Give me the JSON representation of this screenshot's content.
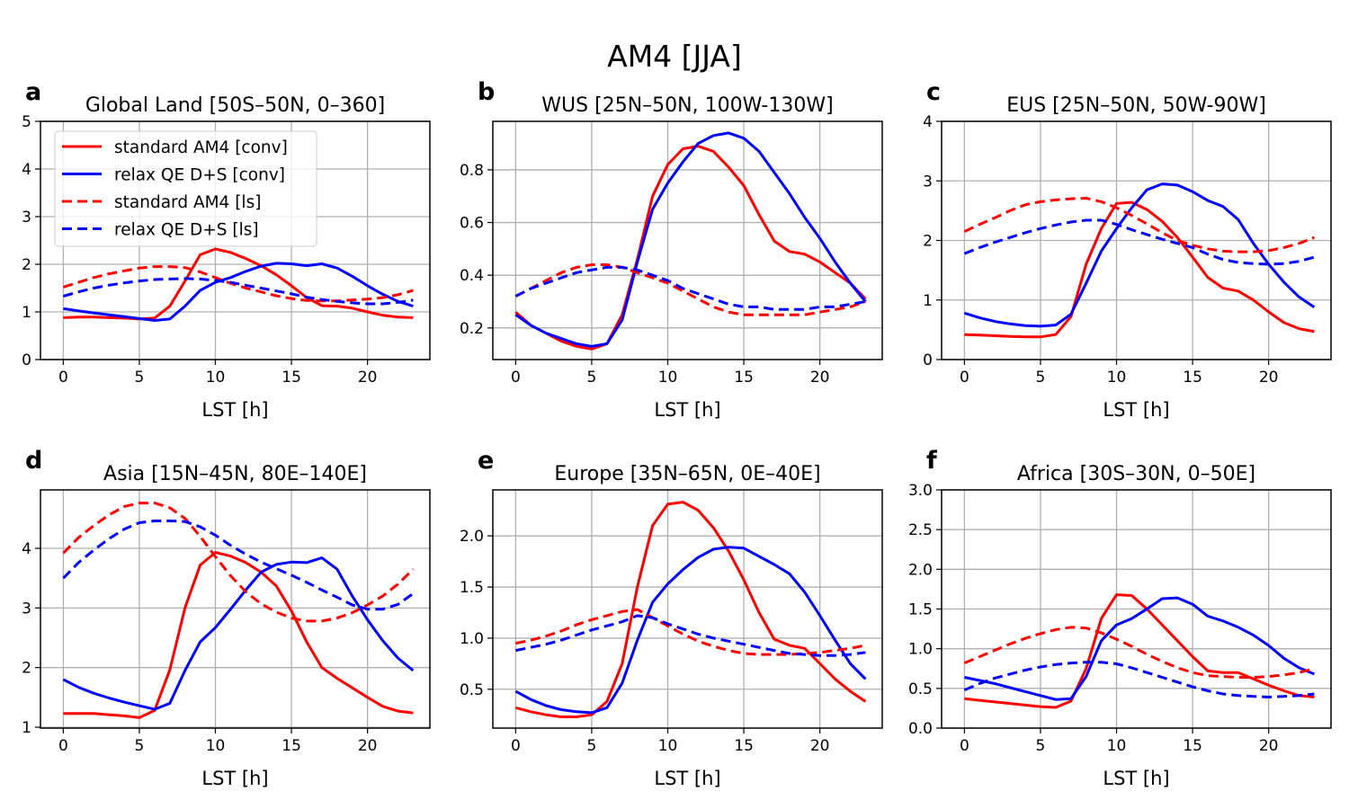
{
  "figure_title": "AM4 [JJA]",
  "colors": {
    "standard": "#ff0000",
    "relax": "#0000ff",
    "grid": "#b0b0b0"
  },
  "legend": {
    "placement": "upper-left of panel a",
    "entries": [
      {
        "label": "standard AM4 [conv]",
        "color": "#ff0000",
        "style": "solid"
      },
      {
        "label": "relax QE D+S [conv]",
        "color": "#0000ff",
        "style": "solid"
      },
      {
        "label": "standard AM4 [ls]",
        "color": "#ff0000",
        "style": "dashed"
      },
      {
        "label": "relax QE D+S [ls]",
        "color": "#0000ff",
        "style": "dashed"
      }
    ]
  },
  "chart_data": [
    {
      "type": "line",
      "letter": "a",
      "title": "Global Land [50S–50N, 0–360]",
      "xlabel": "LST [h]",
      "ylabel": "",
      "grid": true,
      "xlim": [
        -1.5,
        24.1
      ],
      "ylim": [
        0,
        5
      ],
      "xticks": [
        0,
        5,
        10,
        15,
        20
      ],
      "xticklabels": [
        "0",
        "5",
        "10",
        "15",
        "20"
      ],
      "yticks": [
        0,
        1,
        2,
        3,
        4,
        5
      ],
      "yticklabels": [
        "0",
        "1",
        "2",
        "3",
        "4",
        "5"
      ],
      "x": [
        0,
        1,
        2,
        3,
        4,
        5,
        6,
        7,
        8,
        9,
        10,
        11,
        12,
        13,
        14,
        15,
        16,
        17,
        18,
        19,
        20,
        21,
        22,
        23
      ],
      "series": [
        {
          "name": "standard AM4 [conv]",
          "values": [
            0.88,
            0.89,
            0.89,
            0.88,
            0.87,
            0.85,
            0.87,
            1.12,
            1.65,
            2.2,
            2.32,
            2.25,
            2.12,
            1.97,
            1.78,
            1.55,
            1.3,
            1.13,
            1.12,
            1.08,
            1.0,
            0.93,
            0.89,
            0.88
          ]
        },
        {
          "name": "relax QE D+S [conv]",
          "values": [
            1.07,
            1.02,
            0.98,
            0.94,
            0.9,
            0.86,
            0.82,
            0.85,
            1.12,
            1.45,
            1.62,
            1.72,
            1.85,
            1.96,
            2.02,
            2.01,
            1.97,
            2.01,
            1.92,
            1.75,
            1.55,
            1.37,
            1.22,
            1.12
          ]
        },
        {
          "name": "standard AM4 [ls]",
          "values": [
            1.52,
            1.62,
            1.72,
            1.8,
            1.86,
            1.92,
            1.95,
            1.95,
            1.93,
            1.84,
            1.72,
            1.6,
            1.5,
            1.42,
            1.34,
            1.28,
            1.24,
            1.23,
            1.23,
            1.25,
            1.27,
            1.3,
            1.36,
            1.45
          ]
        },
        {
          "name": "relax QE D+S [ls]",
          "values": [
            1.33,
            1.42,
            1.5,
            1.56,
            1.61,
            1.65,
            1.68,
            1.69,
            1.7,
            1.69,
            1.66,
            1.62,
            1.56,
            1.5,
            1.44,
            1.38,
            1.31,
            1.26,
            1.22,
            1.19,
            1.17,
            1.17,
            1.2,
            1.25
          ]
        }
      ]
    },
    {
      "type": "line",
      "letter": "b",
      "title": "WUS [25N–50N, 100W-130W]",
      "xlabel": "LST [h]",
      "ylabel": "",
      "grid": true,
      "xlim": [
        -1.5,
        24.1
      ],
      "ylim": [
        0.08,
        0.984
      ],
      "xticks": [
        0,
        5,
        10,
        15,
        20
      ],
      "xticklabels": [
        "0",
        "5",
        "10",
        "15",
        "20"
      ],
      "yticks": [
        0.2,
        0.4,
        0.6,
        0.8
      ],
      "yticklabels": [
        "0.2",
        "0.4",
        "0.6",
        "0.8"
      ],
      "x": [
        0,
        1,
        2,
        3,
        4,
        5,
        6,
        7,
        8,
        9,
        10,
        11,
        12,
        13,
        14,
        15,
        16,
        17,
        18,
        19,
        20,
        21,
        22,
        23
      ],
      "series": [
        {
          "name": "standard AM4 [conv]",
          "values": [
            0.26,
            0.21,
            0.18,
            0.15,
            0.13,
            0.12,
            0.14,
            0.25,
            0.46,
            0.7,
            0.82,
            0.88,
            0.89,
            0.87,
            0.81,
            0.74,
            0.63,
            0.53,
            0.49,
            0.48,
            0.45,
            0.41,
            0.37,
            0.31
          ]
        },
        {
          "name": "relax QE D+S [conv]",
          "values": [
            0.25,
            0.21,
            0.18,
            0.16,
            0.14,
            0.13,
            0.14,
            0.23,
            0.45,
            0.65,
            0.75,
            0.83,
            0.9,
            0.93,
            0.94,
            0.92,
            0.87,
            0.79,
            0.71,
            0.62,
            0.54,
            0.45,
            0.37,
            0.3
          ]
        },
        {
          "name": "standard AM4 [ls]",
          "values": [
            0.32,
            0.35,
            0.38,
            0.41,
            0.43,
            0.44,
            0.44,
            0.43,
            0.41,
            0.39,
            0.37,
            0.34,
            0.31,
            0.28,
            0.26,
            0.25,
            0.25,
            0.25,
            0.25,
            0.25,
            0.26,
            0.27,
            0.28,
            0.3
          ]
        },
        {
          "name": "relax QE D+S [ls]",
          "values": [
            0.32,
            0.35,
            0.37,
            0.39,
            0.41,
            0.42,
            0.43,
            0.43,
            0.42,
            0.4,
            0.38,
            0.35,
            0.33,
            0.31,
            0.29,
            0.28,
            0.28,
            0.27,
            0.27,
            0.27,
            0.28,
            0.28,
            0.29,
            0.3
          ]
        }
      ]
    },
    {
      "type": "line",
      "letter": "c",
      "title": "EUS [25N–50N, 50W-90W]",
      "xlabel": "LST [h]",
      "ylabel": "",
      "grid": true,
      "xlim": [
        -1.5,
        24.1
      ],
      "ylim": [
        0,
        4
      ],
      "xticks": [
        0,
        5,
        10,
        15,
        20
      ],
      "xticklabels": [
        "0",
        "5",
        "10",
        "15",
        "20"
      ],
      "yticks": [
        0,
        1,
        2,
        3,
        4
      ],
      "yticklabels": [
        "0",
        "1",
        "2",
        "3",
        "4"
      ],
      "x": [
        0,
        1,
        2,
        3,
        4,
        5,
        6,
        7,
        8,
        9,
        10,
        11,
        12,
        13,
        14,
        15,
        16,
        17,
        18,
        19,
        20,
        21,
        22,
        23
      ],
      "series": [
        {
          "name": "standard AM4 [conv]",
          "values": [
            0.42,
            0.41,
            0.4,
            0.39,
            0.38,
            0.38,
            0.42,
            0.72,
            1.6,
            2.2,
            2.62,
            2.64,
            2.52,
            2.32,
            2.05,
            1.72,
            1.38,
            1.2,
            1.15,
            1.0,
            0.8,
            0.62,
            0.52,
            0.47
          ]
        },
        {
          "name": "relax QE D+S [conv]",
          "values": [
            0.78,
            0.7,
            0.64,
            0.6,
            0.57,
            0.56,
            0.58,
            0.76,
            1.28,
            1.82,
            2.2,
            2.55,
            2.85,
            2.95,
            2.93,
            2.82,
            2.67,
            2.57,
            2.35,
            1.95,
            1.6,
            1.3,
            1.05,
            0.88
          ]
        },
        {
          "name": "standard AM4 [ls]",
          "values": [
            2.15,
            2.27,
            2.38,
            2.5,
            2.6,
            2.65,
            2.68,
            2.7,
            2.71,
            2.65,
            2.55,
            2.42,
            2.28,
            2.13,
            2.0,
            1.92,
            1.86,
            1.82,
            1.81,
            1.81,
            1.83,
            1.88,
            1.95,
            2.05
          ]
        },
        {
          "name": "relax QE D+S [ls]",
          "values": [
            1.78,
            1.88,
            1.97,
            2.05,
            2.13,
            2.2,
            2.26,
            2.31,
            2.34,
            2.34,
            2.27,
            2.18,
            2.1,
            2.02,
            1.95,
            1.88,
            1.77,
            1.68,
            1.63,
            1.61,
            1.6,
            1.61,
            1.65,
            1.72
          ]
        }
      ]
    },
    {
      "type": "line",
      "letter": "d",
      "title": "Asia [15N–45N, 80E–140E]",
      "xlabel": "LST [h]",
      "ylabel": "",
      "grid": true,
      "xlim": [
        -1.5,
        24.1
      ],
      "ylim": [
        0.985,
        4.98
      ],
      "xticks": [
        0,
        5,
        10,
        15,
        20
      ],
      "xticklabels": [
        "0",
        "5",
        "10",
        "15",
        "20"
      ],
      "yticks": [
        1,
        2,
        3,
        4
      ],
      "yticklabels": [
        "1",
        "2",
        "3",
        "4"
      ],
      "x": [
        0,
        1,
        2,
        3,
        4,
        5,
        6,
        7,
        8,
        9,
        10,
        11,
        12,
        13,
        14,
        15,
        16,
        17,
        18,
        19,
        20,
        21,
        22,
        23
      ],
      "series": [
        {
          "name": "standard AM4 [conv]",
          "values": [
            1.23,
            1.23,
            1.23,
            1.21,
            1.19,
            1.16,
            1.28,
            1.96,
            3.0,
            3.72,
            3.93,
            3.87,
            3.76,
            3.6,
            3.37,
            2.95,
            2.43,
            2.0,
            1.82,
            1.66,
            1.5,
            1.35,
            1.27,
            1.24
          ]
        },
        {
          "name": "relax QE D+S [conv]",
          "values": [
            1.8,
            1.67,
            1.57,
            1.49,
            1.42,
            1.36,
            1.3,
            1.4,
            1.95,
            2.43,
            2.67,
            2.98,
            3.3,
            3.6,
            3.73,
            3.77,
            3.76,
            3.84,
            3.65,
            3.2,
            2.8,
            2.45,
            2.16,
            1.95
          ]
        },
        {
          "name": "standard AM4 [ls]",
          "values": [
            3.92,
            4.18,
            4.38,
            4.56,
            4.7,
            4.76,
            4.76,
            4.68,
            4.5,
            4.2,
            3.86,
            3.54,
            3.27,
            3.07,
            2.93,
            2.83,
            2.78,
            2.78,
            2.83,
            2.92,
            3.05,
            3.2,
            3.4,
            3.65
          ]
        },
        {
          "name": "relax QE D+S [ls]",
          "values": [
            3.5,
            3.76,
            3.97,
            4.16,
            4.32,
            4.43,
            4.46,
            4.46,
            4.45,
            4.36,
            4.22,
            4.05,
            3.9,
            3.77,
            3.66,
            3.55,
            3.43,
            3.3,
            3.18,
            3.05,
            2.98,
            2.98,
            3.06,
            3.24
          ]
        }
      ]
    },
    {
      "type": "line",
      "letter": "e",
      "title": "Europe [35N–65N, 0E–40E]",
      "xlabel": "LST [h]",
      "ylabel": "",
      "grid": true,
      "xlim": [
        -1.5,
        24.1
      ],
      "ylim": [
        0.12,
        2.45
      ],
      "xticks": [
        0,
        5,
        10,
        15,
        20
      ],
      "xticklabels": [
        "0",
        "5",
        "10",
        "15",
        "20"
      ],
      "yticks": [
        0.5,
        1.0,
        1.5,
        2.0
      ],
      "yticklabels": [
        "0.5",
        "1.0",
        "1.5",
        "2.0"
      ],
      "x": [
        0,
        1,
        2,
        3,
        4,
        5,
        6,
        7,
        8,
        9,
        10,
        11,
        12,
        13,
        14,
        15,
        16,
        17,
        18,
        19,
        20,
        21,
        22,
        23
      ],
      "series": [
        {
          "name": "standard AM4 [conv]",
          "values": [
            0.32,
            0.28,
            0.25,
            0.23,
            0.23,
            0.25,
            0.38,
            0.75,
            1.5,
            2.1,
            2.31,
            2.33,
            2.25,
            2.08,
            1.85,
            1.57,
            1.25,
            0.99,
            0.93,
            0.9,
            0.75,
            0.6,
            0.48,
            0.38
          ]
        },
        {
          "name": "relax QE D+S [conv]",
          "values": [
            0.48,
            0.4,
            0.34,
            0.3,
            0.28,
            0.27,
            0.32,
            0.56,
            0.98,
            1.35,
            1.53,
            1.67,
            1.79,
            1.87,
            1.89,
            1.88,
            1.8,
            1.72,
            1.63,
            1.45,
            1.22,
            0.98,
            0.75,
            0.6
          ]
        },
        {
          "name": "standard AM4 [ls]",
          "values": [
            0.95,
            0.98,
            1.02,
            1.07,
            1.13,
            1.18,
            1.22,
            1.26,
            1.28,
            1.2,
            1.12,
            1.04,
            0.97,
            0.92,
            0.88,
            0.85,
            0.84,
            0.84,
            0.84,
            0.85,
            0.86,
            0.88,
            0.9,
            0.93
          ]
        },
        {
          "name": "relax QE D+S [ls]",
          "values": [
            0.88,
            0.91,
            0.94,
            0.98,
            1.03,
            1.08,
            1.12,
            1.16,
            1.22,
            1.2,
            1.14,
            1.09,
            1.04,
            1.0,
            0.97,
            0.94,
            0.91,
            0.88,
            0.85,
            0.84,
            0.83,
            0.83,
            0.84,
            0.86
          ]
        }
      ]
    },
    {
      "type": "line",
      "letter": "f",
      "title": "Africa [30S–30N, 0–50E]",
      "xlabel": "LST [h]",
      "ylabel": "",
      "grid": true,
      "xlim": [
        -1.5,
        24.1
      ],
      "ylim": [
        0,
        3
      ],
      "xticks": [
        0,
        5,
        10,
        15,
        20
      ],
      "xticklabels": [
        "0",
        "5",
        "10",
        "15",
        "20"
      ],
      "yticks": [
        0,
        0.5,
        1.0,
        1.5,
        2.0,
        2.5,
        3.0
      ],
      "yticklabels": [
        "0.0",
        "0.5",
        "1.0",
        "1.5",
        "2.0",
        "2.5",
        "3.0"
      ],
      "x": [
        0,
        1,
        2,
        3,
        4,
        5,
        6,
        7,
        8,
        9,
        10,
        11,
        12,
        13,
        14,
        15,
        16,
        17,
        18,
        19,
        20,
        21,
        22,
        23
      ],
      "series": [
        {
          "name": "standard AM4 [conv]",
          "values": [
            0.37,
            0.35,
            0.33,
            0.31,
            0.29,
            0.27,
            0.26,
            0.34,
            0.75,
            1.38,
            1.68,
            1.67,
            1.5,
            1.3,
            1.1,
            0.9,
            0.72,
            0.7,
            0.7,
            0.62,
            0.54,
            0.47,
            0.41,
            0.39
          ]
        },
        {
          "name": "relax QE D+S [conv]",
          "values": [
            0.64,
            0.6,
            0.56,
            0.51,
            0.46,
            0.41,
            0.36,
            0.37,
            0.65,
            1.1,
            1.3,
            1.38,
            1.5,
            1.63,
            1.64,
            1.56,
            1.41,
            1.35,
            1.27,
            1.17,
            1.04,
            0.88,
            0.76,
            0.68
          ]
        },
        {
          "name": "standard AM4 [ls]",
          "values": [
            0.82,
            0.9,
            0.98,
            1.06,
            1.13,
            1.19,
            1.24,
            1.27,
            1.26,
            1.2,
            1.12,
            1.03,
            0.93,
            0.84,
            0.76,
            0.7,
            0.66,
            0.65,
            0.64,
            0.64,
            0.65,
            0.67,
            0.7,
            0.75
          ]
        },
        {
          "name": "relax QE D+S [ls]",
          "values": [
            0.48,
            0.56,
            0.63,
            0.68,
            0.73,
            0.77,
            0.8,
            0.82,
            0.83,
            0.83,
            0.81,
            0.76,
            0.7,
            0.64,
            0.58,
            0.52,
            0.47,
            0.43,
            0.41,
            0.4,
            0.39,
            0.4,
            0.41,
            0.43
          ]
        }
      ]
    }
  ]
}
